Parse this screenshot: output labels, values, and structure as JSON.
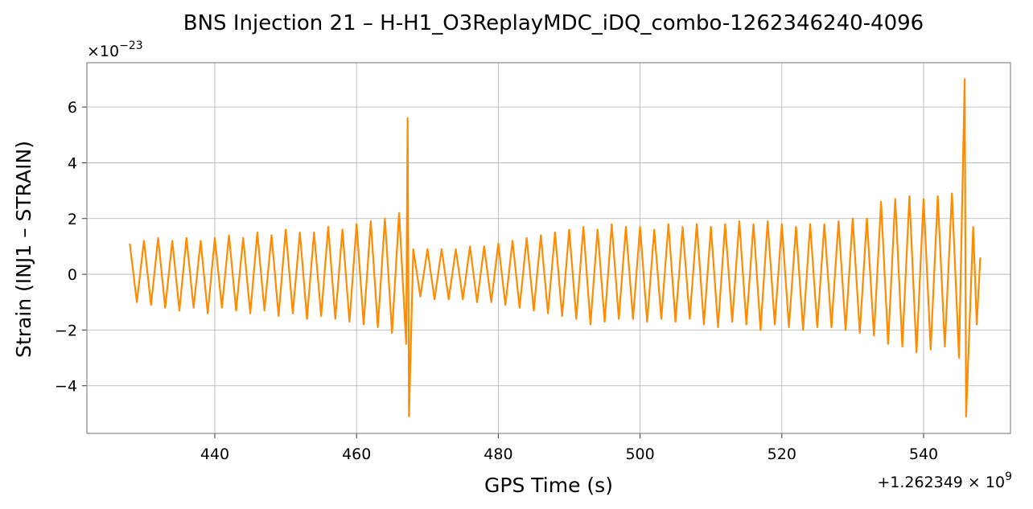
{
  "chart_data": {
    "type": "line",
    "title": "BNS Injection 21 – H-H1_O3ReplayMDC_iDQ_combo-1262346240-4096",
    "xlabel": "GPS Time (s)",
    "ylabel": "Strain (INJ1 – STRAIN)",
    "x_offset": {
      "base": "+1.262349 × 10",
      "exponent": "9"
    },
    "y_offset": {
      "base": "×10",
      "exponent": "−23"
    },
    "xlim": [
      421.95,
      552.26
    ],
    "ylim": [
      -5.71,
      7.59
    ],
    "xticks": [
      440,
      460,
      480,
      500,
      520,
      540
    ],
    "yticks": [
      {
        "value": -4,
        "label": "−4"
      },
      {
        "value": -2,
        "label": "−2"
      },
      0,
      2,
      4,
      6
    ],
    "grid": true,
    "x": [
      428,
      429,
      430,
      431,
      432,
      433,
      434,
      435,
      436,
      437,
      438,
      439,
      440,
      441,
      442,
      443,
      444,
      445,
      446,
      447,
      448,
      449,
      450,
      451,
      452,
      453,
      454,
      455,
      456,
      457,
      458,
      459,
      460,
      461,
      462,
      463,
      464,
      465,
      466,
      467,
      467.2,
      467.4,
      468,
      469,
      470,
      471,
      472,
      473,
      474,
      475,
      476,
      477,
      478,
      479,
      480,
      481,
      482,
      483,
      484,
      485,
      486,
      487,
      488,
      489,
      490,
      491,
      492,
      493,
      494,
      495,
      496,
      497,
      498,
      499,
      500,
      501,
      502,
      503,
      504,
      505,
      506,
      507,
      508,
      509,
      510,
      511,
      512,
      513,
      514,
      515,
      516,
      517,
      518,
      519,
      520,
      521,
      522,
      523,
      524,
      525,
      526,
      527,
      528,
      529,
      530,
      531,
      532,
      533,
      534,
      535,
      536,
      537,
      538,
      539,
      540,
      541,
      542,
      543,
      544,
      545,
      545.8,
      546,
      547,
      547.5,
      548
    ],
    "series": [
      {
        "name": "INJ1 – STRAIN",
        "color": "#ff8c00",
        "values": [
          1.1,
          -1.0,
          1.2,
          -1.1,
          1.3,
          -1.2,
          1.2,
          -1.3,
          1.3,
          -1.2,
          1.2,
          -1.4,
          1.3,
          -1.2,
          1.4,
          -1.3,
          1.3,
          -1.4,
          1.5,
          -1.3,
          1.4,
          -1.5,
          1.6,
          -1.4,
          1.5,
          -1.6,
          1.5,
          -1.5,
          1.7,
          -1.6,
          1.6,
          -1.7,
          1.8,
          -1.8,
          1.9,
          -1.9,
          2.0,
          -2.1,
          2.2,
          -2.5,
          5.6,
          -5.1,
          0.9,
          -0.8,
          0.9,
          -0.9,
          0.9,
          -0.9,
          0.9,
          -0.9,
          1.0,
          -1.0,
          1.0,
          -1.0,
          1.1,
          -1.1,
          1.2,
          -1.2,
          1.3,
          -1.3,
          1.4,
          -1.4,
          1.5,
          -1.5,
          1.6,
          -1.6,
          1.7,
          -1.8,
          1.6,
          -1.7,
          1.8,
          -1.6,
          1.7,
          -1.6,
          1.7,
          -1.7,
          1.6,
          -1.6,
          1.8,
          -1.7,
          1.7,
          -1.6,
          1.8,
          -1.8,
          1.7,
          -1.9,
          1.8,
          -1.7,
          1.9,
          -1.8,
          1.8,
          -2.0,
          1.9,
          -1.8,
          1.8,
          -1.9,
          1.7,
          -2.0,
          1.8,
          -1.9,
          1.8,
          -1.9,
          1.9,
          -2.0,
          2.0,
          -2.1,
          2.0,
          -2.2,
          2.6,
          -2.5,
          2.7,
          -2.6,
          2.8,
          -2.8,
          2.7,
          -2.7,
          2.8,
          -2.6,
          2.9,
          -3.0,
          7.0,
          -5.1,
          1.7,
          -1.8,
          0.6
        ]
      }
    ]
  }
}
